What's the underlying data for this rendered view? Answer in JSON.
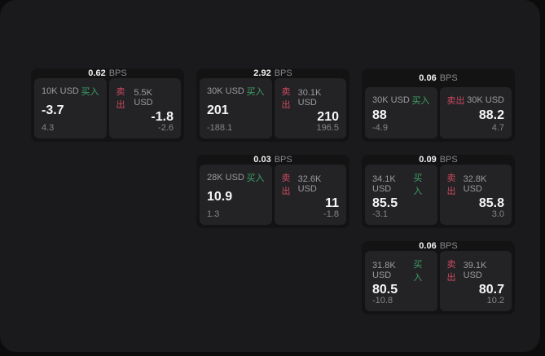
{
  "labels": {
    "bps": "BPS",
    "buy": "买入",
    "sell": "卖出"
  },
  "colors": {
    "page_bg": "#0c0c0d",
    "container_bg": "#1a1a1c",
    "card_bg": "#131314",
    "panel_bg": "#232326",
    "buy": "#3fa065",
    "sell": "#cb4a5e"
  },
  "cards": [
    {
      "bps": "0.62",
      "buy": {
        "amount": "10K USD",
        "price": "-3.7",
        "delta": "4.3"
      },
      "sell": {
        "amount": "5.5K USD",
        "price": "-1.8",
        "delta": "-2.6"
      }
    },
    {
      "bps": "2.92",
      "buy": {
        "amount": "30K USD",
        "price": "201",
        "delta": "-188.1"
      },
      "sell": {
        "amount": "30.1K USD",
        "price": "210",
        "delta": "196.5"
      }
    },
    {
      "bps": "0.06",
      "buy": {
        "amount": "30K USD",
        "price": "88",
        "delta": "-4.9"
      },
      "sell": {
        "amount": "30K USD",
        "price": "88.2",
        "delta": "4.7"
      }
    },
    {
      "bps": "0.03",
      "buy": {
        "amount": "28K USD",
        "price": "10.9",
        "delta": "1.3"
      },
      "sell": {
        "amount": "32.6K USD",
        "price": "11",
        "delta": "-1.8"
      }
    },
    {
      "bps": "0.09",
      "buy": {
        "amount": "34.1K USD",
        "price": "85.5",
        "delta": "-3.1"
      },
      "sell": {
        "amount": "32.8K USD",
        "price": "85.8",
        "delta": "3.0"
      }
    },
    {
      "bps": "0.06",
      "buy": {
        "amount": "31.8K USD",
        "price": "80.5",
        "delta": "-10.8"
      },
      "sell": {
        "amount": "39.1K USD",
        "price": "80.7",
        "delta": "10.2"
      }
    }
  ]
}
